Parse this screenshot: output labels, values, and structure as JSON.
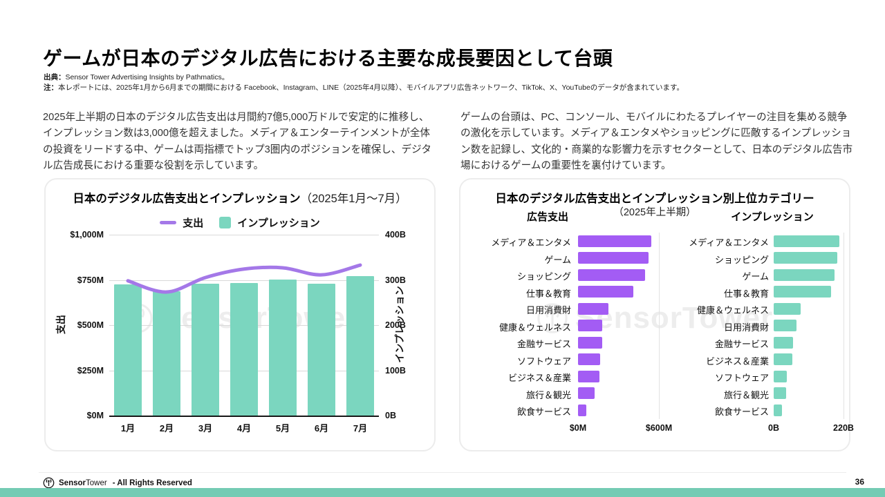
{
  "header": {
    "title": "ゲームが日本のデジタル広告における主要な成長要因として台頭",
    "source_label": "出典：",
    "source_text": "Sensor Tower Advertising Insights by Pathmatics。",
    "note_label": "注：",
    "note_text": "本レポートには、2025年1月から6月までの期間における Facebook、Instagram、LINE（2025年4月以降）、モバイルアプリ広告ネットワーク、TikTok、X、YouTubeのデータが含まれています。"
  },
  "intro": {
    "left": "2025年上半期の日本のデジタル広告支出は月間約7億5,000万ドルで安定的に推移し、インプレッション数は3,000億を超えました。メディア＆エンターテインメントが全体の投資をリードする中、ゲームは両指標でトップ3圏内のポジションを確保し、デジタル広告成長における重要な役割を示しています。",
    "right": "ゲームの台頭は、PC、コンソール、モバイルにわたるプレイヤーの注目を集める競争の激化を示しています。メディア＆エンタメやショッピングに匹敵するインプレッション数を記録し、文化的・商業的な影響力を示すセクターとして、日本のデジタル広告市場におけるゲームの重要性を裏付けています。"
  },
  "colors": {
    "purple_bar": "#a35cf4",
    "spend_line": "#a478e8",
    "teal_bar": "#7bd6bf",
    "bottom_strip": "#74cbb4",
    "gridline": "#d9d9d9"
  },
  "watermark": {
    "text": "SensorTower"
  },
  "chart_data": [
    {
      "type": "bar",
      "subtype": "combo-bar-line",
      "title": "日本のデジタル広告支出とインプレッション",
      "title_suffix": "（2025年1月〜7月）",
      "categories": [
        "1月",
        "2月",
        "3月",
        "4月",
        "5月",
        "6月",
        "7月"
      ],
      "series": [
        {
          "name": "支出",
          "type": "line",
          "axis": "left",
          "unit": "$M",
          "color": "#a478e8",
          "values": [
            745,
            683,
            763,
            810,
            817,
            778,
            832
          ]
        },
        {
          "name": "インプレッション",
          "type": "bar",
          "axis": "right",
          "unit": "B",
          "color": "#7bd6bf",
          "values": [
            290,
            275,
            291,
            293,
            301,
            292,
            309
          ]
        }
      ],
      "left_axis": {
        "label": "支出",
        "ticks": [
          "$1,000M",
          "$750M",
          "$500M",
          "$250M",
          "$0M"
        ],
        "min": 0,
        "max": 1000
      },
      "right_axis": {
        "label": "インプレッション",
        "ticks": [
          "400B",
          "300B",
          "200B",
          "100B",
          "0B"
        ],
        "min": 0,
        "max": 400
      },
      "grid": true,
      "legend_position": "top"
    },
    {
      "type": "bar",
      "subtype": "horizontal-bars-two-panels",
      "title": "日本のデジタル広告支出とインプレッション別上位カテゴリー",
      "subtitle": "（2025年上半期）",
      "panels": [
        {
          "heading": "広告支出",
          "color": "#a35cf4",
          "unit": "$M",
          "xlim": [
            0,
            600
          ],
          "axis_ticks": [
            "$0M",
            "$600M"
          ],
          "categories": [
            "メディア＆エンタメ",
            "ゲーム",
            "ショッピング",
            "仕事＆教育",
            "日用消費財",
            "健康＆ウェルネス",
            "金融サービス",
            "ソフトウェア",
            "ビジネス＆産業",
            "旅行＆観光",
            "飲食サービス"
          ],
          "values": [
            545,
            525,
            498,
            410,
            225,
            182,
            180,
            163,
            160,
            122,
            62
          ]
        },
        {
          "heading": "インプレッション",
          "color": "#7bd6bf",
          "unit": "B",
          "xlim": [
            0,
            220
          ],
          "axis_ticks": [
            "0B",
            "220B"
          ],
          "categories": [
            "メディア＆エンタメ",
            "ショッピング",
            "ゲーム",
            "仕事＆教育",
            "健康＆ウェルネス",
            "日用消費財",
            "金融サービス",
            "ビジネス＆産業",
            "ソフトウェア",
            "旅行＆観光",
            "飲食サービス"
          ],
          "values": [
            206,
            200,
            192,
            181,
            86,
            72,
            62,
            59,
            41,
            39,
            27
          ]
        }
      ]
    }
  ],
  "footer": {
    "brand_bold": "Sensor",
    "brand_light": "Tower",
    "rights": "- All Rights Reserved",
    "page_number": "36"
  }
}
